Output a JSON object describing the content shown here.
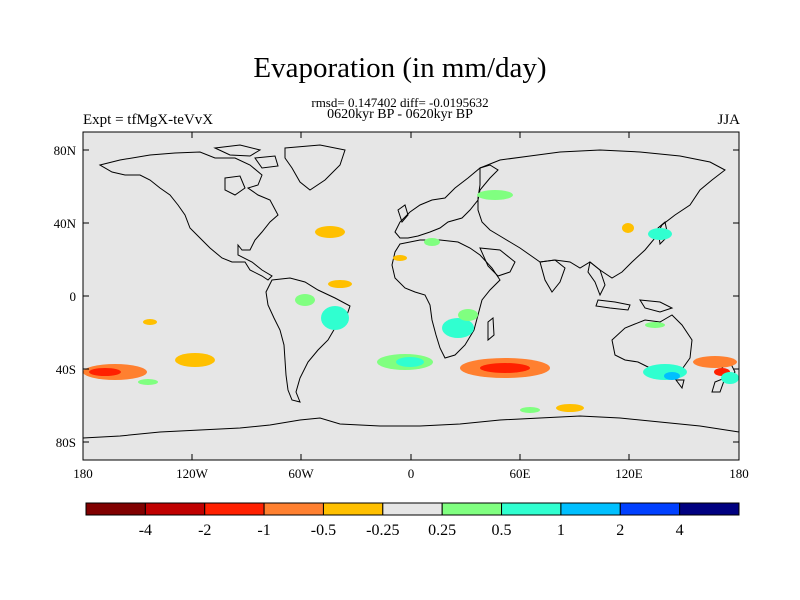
{
  "title": "Evaporation (in mm/day)",
  "stats_line": "rmsd= 0.147402 diff= -0.0195632",
  "period_line": "0620kyr BP - 0620kyr BP",
  "experiment_label": "Expt = tfMgX-teVvX",
  "season_label": "JJA",
  "map": {
    "ocean_color": "#e6e6e6",
    "coast_color": "#000000",
    "lon_ticks": [
      "180",
      "120W",
      "60W",
      "0",
      "60E",
      "120E",
      "180"
    ],
    "lat_ticks": [
      "80N",
      "40N",
      "0",
      "40S",
      "80S"
    ]
  },
  "colorbar": {
    "colors": [
      "#800000",
      "#c00000",
      "#ff2000",
      "#ff8030",
      "#ffc000",
      "#e6e6e6",
      "#80ff80",
      "#30ffd0",
      "#00c0ff",
      "#0040ff",
      "#000080"
    ],
    "labels": [
      "-4",
      "-2",
      "-1",
      "-0.5",
      "-0.25",
      "0.25",
      "0.5",
      "1",
      "2",
      "4"
    ]
  }
}
